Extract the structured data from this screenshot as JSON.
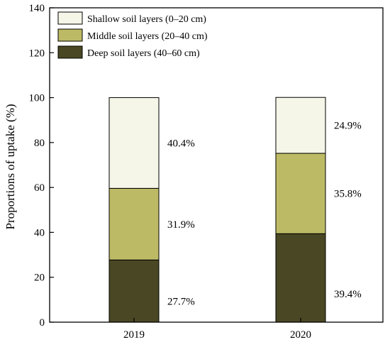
{
  "chart_data": {
    "type": "bar",
    "stacked": true,
    "categories": [
      "2019",
      "2020"
    ],
    "series": [
      {
        "name": "Deep soil layers (40–60 cm)",
        "values": [
          27.7,
          39.4
        ],
        "labels": [
          "27.7%",
          "39.4%"
        ],
        "color": "#4a4824"
      },
      {
        "name": "Middle soil layers (20–40 cm)",
        "values": [
          31.9,
          35.8
        ],
        "labels": [
          "31.9%",
          "35.8%"
        ],
        "color": "#bdba65"
      },
      {
        "name": "Shallow soil layers (0–20 cm)",
        "values": [
          40.4,
          24.9
        ],
        "labels": [
          "40.4%",
          "24.9%"
        ],
        "color": "#f5f5e8"
      }
    ],
    "legend_order": [
      2,
      1,
      0
    ],
    "ylabel": "Proportions of uptake (%)",
    "ylim": [
      0,
      140
    ],
    "yticks": [
      0,
      20,
      40,
      60,
      80,
      100,
      120,
      140
    ],
    "grid": false,
    "legend_position": "top-left"
  }
}
